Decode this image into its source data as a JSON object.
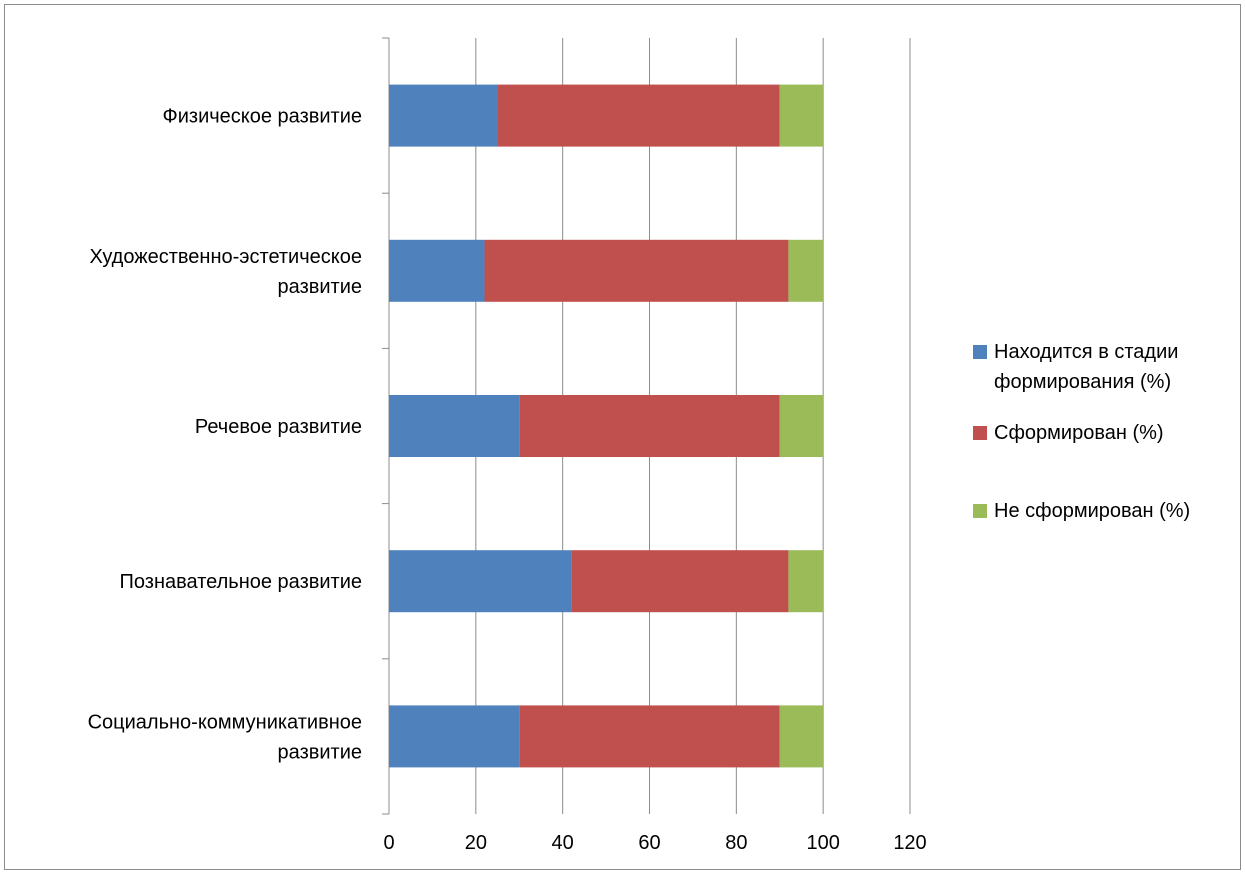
{
  "chart_data": {
    "type": "bar",
    "orientation": "horizontal",
    "stacked": true,
    "categories": [
      "Социально-коммуникативное развитие",
      "Познавательное развитие",
      "Речевое развитие",
      "Художественно-эстетическое развитие",
      "Физическое развитие"
    ],
    "category_lines": [
      [
        "Социально-коммуникативное",
        "развитие"
      ],
      [
        "Познавательное развитие"
      ],
      [
        "Речевое развитие"
      ],
      [
        "Художественно-эстетическое",
        "развитие"
      ],
      [
        "Физическое развитие"
      ]
    ],
    "series": [
      {
        "name": "Находится в стадии формирования (%)",
        "legend_lines": [
          "Находится в стадии",
          "формирования (%)"
        ],
        "color": "#4f81bd",
        "values": [
          30,
          42,
          30,
          22,
          25
        ]
      },
      {
        "name": "Сформирован (%)",
        "legend_lines": [
          "Сформирован (%)"
        ],
        "color": "#c0504d",
        "values": [
          60,
          50,
          60,
          70,
          65
        ]
      },
      {
        "name": "Не сформирован (%)",
        "legend_lines": [
          "Не сформирован (%)"
        ],
        "color": "#9bbb59",
        "values": [
          10,
          8,
          10,
          8,
          10
        ]
      }
    ],
    "xlim": [
      0,
      120
    ],
    "xticks": [
      0,
      20,
      40,
      60,
      80,
      100,
      120
    ],
    "grid": "vertical",
    "legend_position": "right",
    "title": "",
    "xlabel": "",
    "ylabel": ""
  }
}
